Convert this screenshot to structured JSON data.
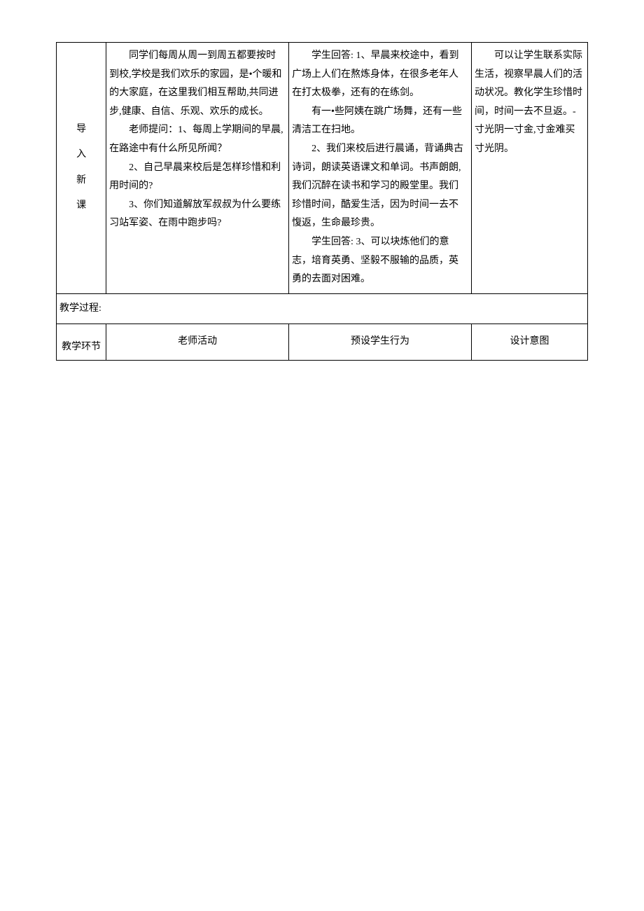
{
  "mainRow": {
    "sectionLabel": {
      "c1": "导",
      "c2": "入",
      "c3": "新",
      "c4": "课"
    },
    "teacherActivity": {
      "p1": "同学们每周从周一到周五都要按时到校,学校是我们欢乐的家园，是•个暖和的大家庭，在这里我们相互帮助,共同进步,健康、自信、乐观、欢乐的成长。",
      "p2": "老师提问：1、每周上学期间的早晨,在路途中有什么所见所闻？",
      "p3": "2、自己早晨来校后是怎样珍惜和利用时间的?",
      "p4": "3、你们知道解放军叔叔为什么要练习站军姿、在雨中跑步吗?"
    },
    "studentBehavior": {
      "p1": "学生回答: 1、早晨来校途中，看到广场上人们在熬炼身体，在很多老年人在打太极拳，还有的在练剑。",
      "p2": "有一•些阿姨在跳广场舞，还有一些清洁工在扫地。",
      "p3": "2、我们来校后进行晨诵，背诵典古诗词，朗读英语课文和单词。书声朗朗,我们沉醉在读书和学习的殿堂里。我们珍惜时间，酷爱生活，因为时间一去不愎返，生命最珍贵。",
      "p4": "学生回答: 3、可以块炼他们的意志，培育英勇、坚毅不服输的品质，英勇的去面对困难。"
    },
    "designIntent": {
      "p1": "可以让学生联系实际生活，视察早晨人们的活动状况。教化学生珍惜时间，时间一去不旦返。-寸光阴一寸金,寸金难买寸光阴。"
    }
  },
  "processLabel": "教学过程:",
  "headers": {
    "col1": "教学环节",
    "col2": "老师活动",
    "col3": "预设学生行为",
    "col4": "设计意图"
  }
}
